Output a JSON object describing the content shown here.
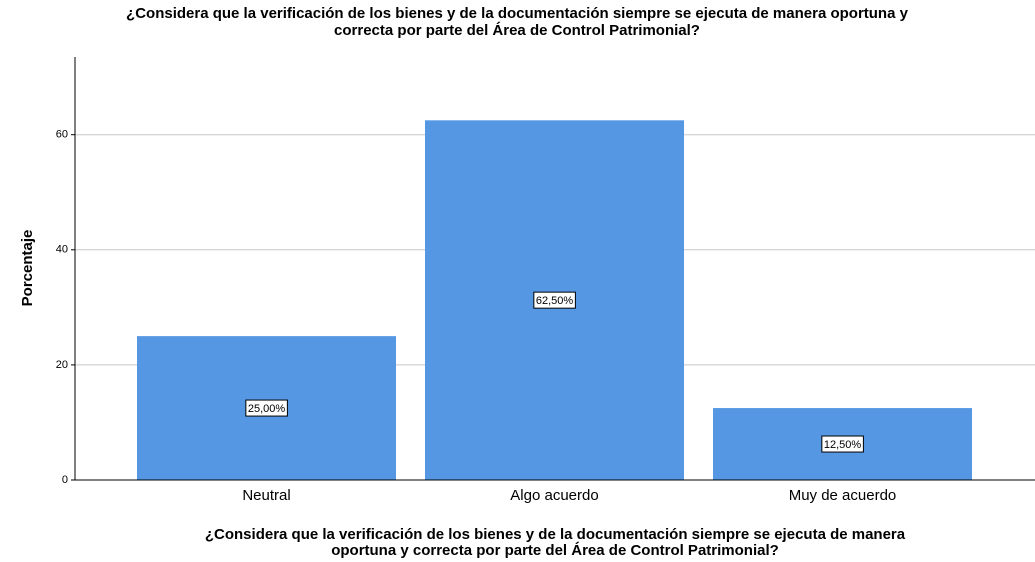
{
  "chart_data": {
    "type": "bar",
    "title": [
      "¿Considera que la verificación de los bienes y de la documentación siempre se ejecuta de manera oportuna y",
      "correcta por parte del Área de Control Patrimonial?"
    ],
    "x_label": [
      "¿Considera que la verificación de los bienes y de la documentación siempre se ejecuta de manera",
      "oportuna y correcta por parte del Área de Control Patrimonial?"
    ],
    "y_label": "Porcentaje",
    "categories": [
      "Neutral",
      "Algo acuerdo",
      "Muy de acuerdo"
    ],
    "values": [
      25,
      62.5,
      12.5
    ],
    "value_labels": [
      "25,00%",
      "62,50%",
      "12,50%"
    ],
    "color": "#5597e3",
    "ylim": [
      0,
      73.5
    ],
    "yticks": [
      0,
      20,
      40,
      60
    ],
    "grid": true
  }
}
